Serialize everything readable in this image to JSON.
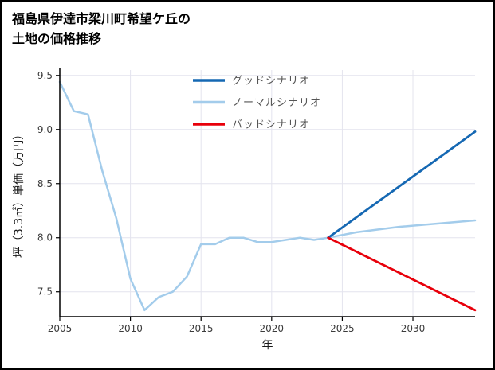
{
  "header": {
    "title_line1": "福島県伊達市梁川町希望ケ丘の",
    "title_line2": "土地の価格推移"
  },
  "chart_data": {
    "type": "line",
    "title": "福島県伊達市梁川町希望ケ丘の 土地の価格推移",
    "xlabel": "年",
    "ylabel": "坪（3.3㎡）単価（万円）",
    "xlim": [
      2005,
      2034.4
    ],
    "ylim": [
      7.27,
      9.55
    ],
    "xticks": [
      2005,
      2010,
      2015,
      2020,
      2025,
      2030
    ],
    "xtick_labels": [
      "2005",
      "2010",
      "2015",
      "2020",
      "2025",
      "2030"
    ],
    "yticks": [
      7.5,
      8.0,
      8.5,
      9.0,
      9.5
    ],
    "ytick_labels": [
      "7.5",
      "8.0",
      "8.5",
      "9.0",
      "9.5"
    ],
    "grid": true,
    "legend": {
      "position": "upper center",
      "frame": false
    },
    "style": {
      "background": "#ffffff",
      "grid_color": "#e4e4ee",
      "spine_color": "#000000",
      "tick_label_color": "#3b3b3b",
      "axis_label_color": "#1a1a1a",
      "legend_text_color": "#555555",
      "frame_border_color": "#000000"
    },
    "series": [
      {
        "name": "グッドシナリオ",
        "color": "#1568b3",
        "line_width": 2.8,
        "draw_order": 2,
        "x": [
          2024,
          2034.4
        ],
        "y": [
          8.0,
          8.98
        ]
      },
      {
        "name": "ノーマルシナリオ",
        "color": "#a3cceb",
        "line_width": 2.5,
        "draw_order": 1,
        "x": [
          2005,
          2006,
          2007,
          2008,
          2009,
          2010,
          2011,
          2012,
          2013,
          2014,
          2015,
          2016,
          2017,
          2018,
          2019,
          2020,
          2021,
          2022,
          2023,
          2024,
          2026,
          2029,
          2034.4
        ],
        "y": [
          9.44,
          9.17,
          9.14,
          8.62,
          8.18,
          7.62,
          7.33,
          7.45,
          7.5,
          7.64,
          7.94,
          7.94,
          8.0,
          8.0,
          7.96,
          7.96,
          7.98,
          8.0,
          7.98,
          8.0,
          8.05,
          8.1,
          8.16
        ]
      },
      {
        "name": "バッドシナリオ",
        "color": "#e8000b",
        "line_width": 2.8,
        "draw_order": 3,
        "x": [
          2024,
          2034.4
        ],
        "y": [
          8.0,
          7.33
        ]
      }
    ]
  }
}
